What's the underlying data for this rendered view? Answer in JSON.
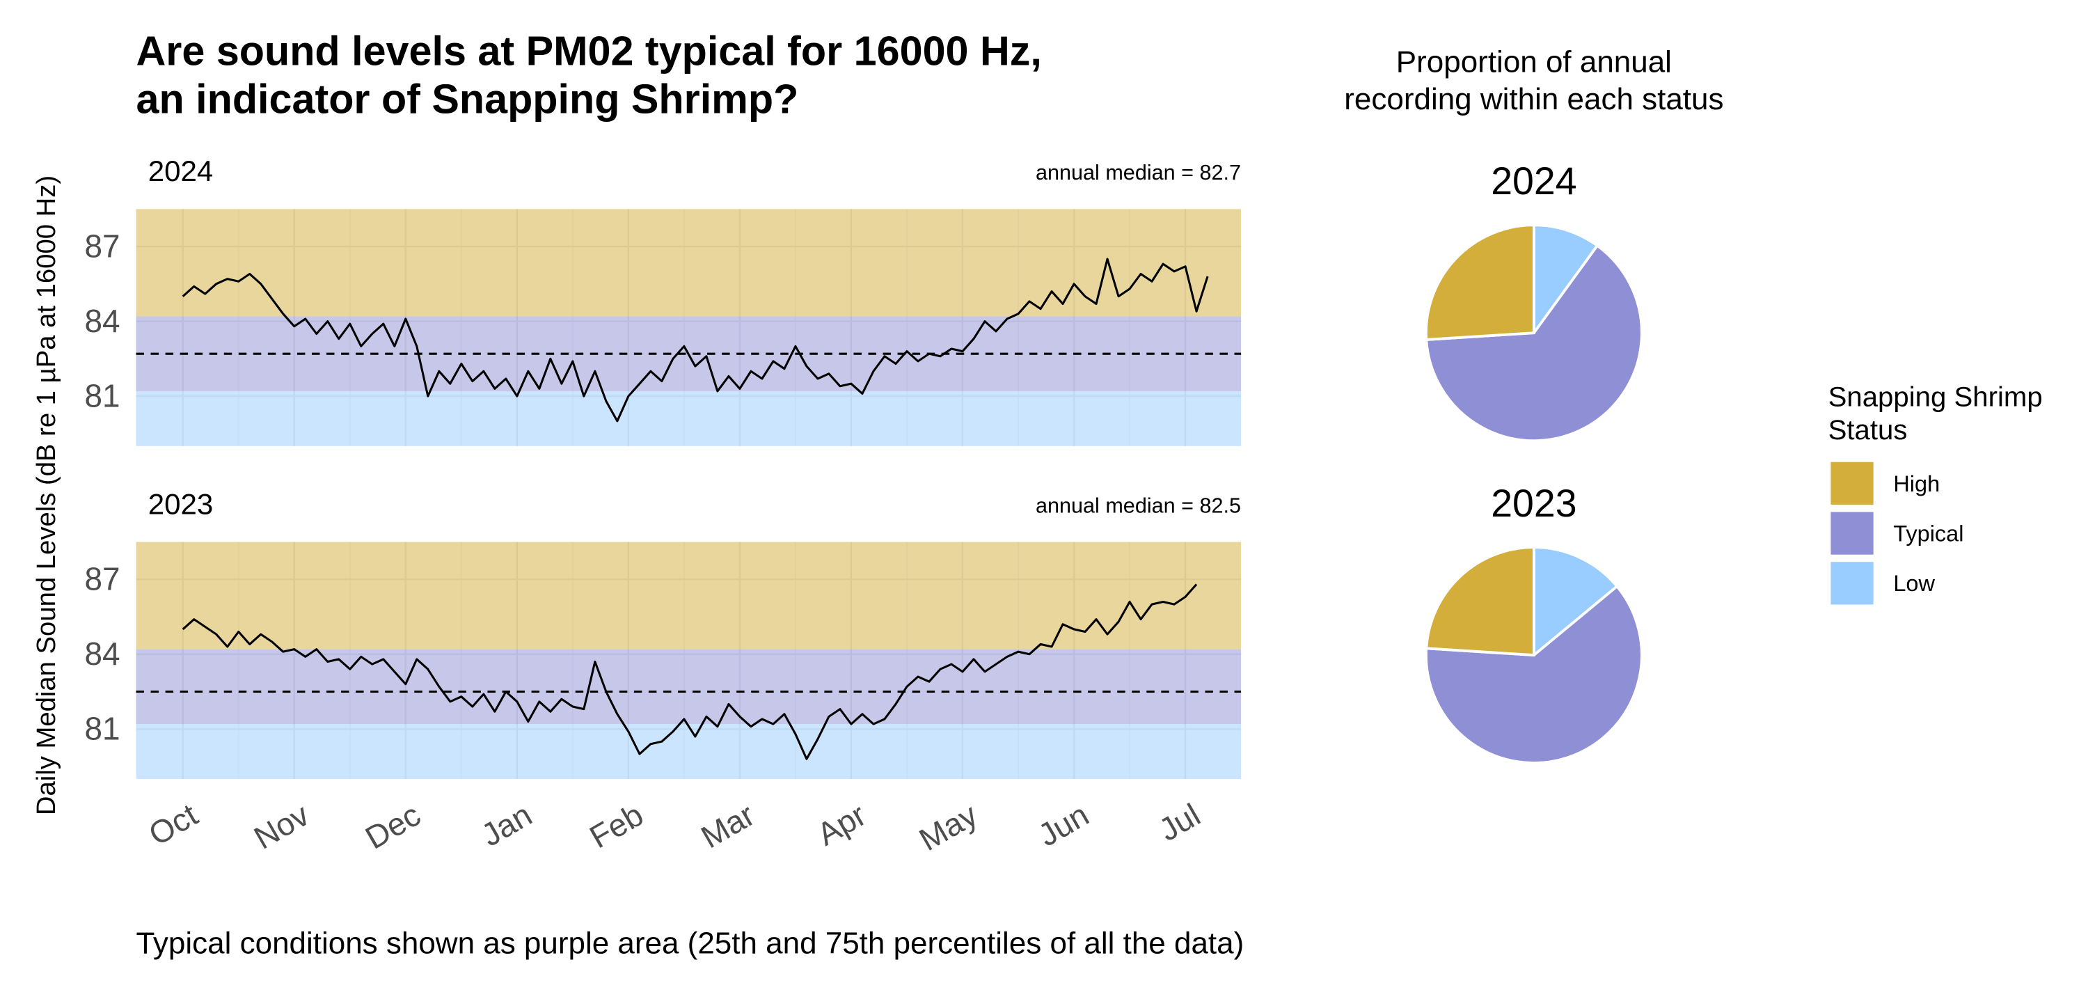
{
  "title": [
    "Are sound levels at PM02 typical for 16000 Hz,",
    "an indicator of Snapping Shrimp?"
  ],
  "y_axis_label": "Daily Median Sound Levels (dB re 1 µPa at 16000 Hz)",
  "caption": "Typical conditions shown as purple area (25th and 75th percentiles of all the data)",
  "pie_heading": [
    "Proportion of annual",
    "recording within each status"
  ],
  "legend_title": [
    "Snapping Shrimp",
    "Status"
  ],
  "chart_data": [
    {
      "type": "line",
      "title": "2024",
      "annotation": "annual median = 82.7",
      "median": 82.7,
      "typical_range": [
        81.2,
        84.2
      ],
      "xlim": [
        -0.42,
        9.5
      ],
      "ylim": [
        79,
        88.5
      ],
      "xticks": [
        0,
        1,
        2,
        3,
        4,
        5,
        6,
        7,
        8,
        9
      ],
      "yticks": [
        81,
        84,
        87
      ],
      "grid": true,
      "x": [
        0,
        0.1,
        0.2,
        0.3,
        0.4,
        0.5,
        0.6,
        0.7,
        0.8,
        0.9,
        1,
        1.1,
        1.2,
        1.3,
        1.4,
        1.5,
        1.6,
        1.7,
        1.8,
        1.9,
        2,
        2.1,
        2.2,
        2.3,
        2.4,
        2.5,
        2.6,
        2.7,
        2.8,
        2.9,
        3,
        3.1,
        3.2,
        3.3,
        3.4,
        3.5,
        3.6,
        3.7,
        3.8,
        3.9,
        4,
        4.1,
        4.2,
        4.3,
        4.4,
        4.5,
        4.6,
        4.7,
        4.8,
        4.9,
        5,
        5.1,
        5.2,
        5.3,
        5.4,
        5.5,
        5.6,
        5.7,
        5.8,
        5.9,
        6,
        6.1,
        6.2,
        6.3,
        6.4,
        6.5,
        6.6,
        6.7,
        6.8,
        6.9,
        7,
        7.1,
        7.2,
        7.3,
        7.4,
        7.5,
        7.6,
        7.7,
        7.8,
        7.9,
        8,
        8.1,
        8.2,
        8.3,
        8.4,
        8.5,
        8.6,
        8.7,
        8.8,
        8.9,
        9,
        9.1,
        9.2
      ],
      "series": [
        {
          "color": "#000000",
          "values": [
            85.0,
            85.4,
            85.1,
            85.5,
            85.7,
            85.6,
            85.9,
            85.5,
            84.9,
            84.3,
            83.8,
            84.1,
            83.5,
            84.0,
            83.3,
            83.9,
            83.0,
            83.5,
            83.9,
            83.0,
            84.1,
            83.0,
            81.0,
            82.0,
            81.5,
            82.3,
            81.6,
            82.0,
            81.3,
            81.7,
            81.0,
            82.0,
            81.3,
            82.5,
            81.5,
            82.4,
            81.0,
            82.0,
            80.8,
            80.0,
            81.0,
            81.5,
            82.0,
            81.6,
            82.5,
            83.0,
            82.2,
            82.6,
            81.2,
            81.8,
            81.3,
            82.0,
            81.7,
            82.4,
            82.1,
            83.0,
            82.2,
            81.7,
            81.9,
            81.4,
            81.5,
            81.1,
            82.0,
            82.6,
            82.3,
            82.8,
            82.4,
            82.7,
            82.6,
            82.9,
            82.8,
            83.3,
            84.0,
            83.6,
            84.1,
            84.3,
            84.8,
            84.5,
            85.2,
            84.7,
            85.5,
            85.0,
            84.7,
            86.5,
            85.0,
            85.3,
            85.9,
            85.6,
            86.3,
            86.0,
            86.2,
            84.4,
            85.8
          ]
        }
      ]
    },
    {
      "type": "line",
      "title": "2023",
      "annotation": "annual median = 82.5",
      "median": 82.5,
      "typical_range": [
        81.2,
        84.2
      ],
      "xlim": [
        -0.42,
        9.5
      ],
      "ylim": [
        79,
        88.5
      ],
      "xticks": [
        {
          "value": 0,
          "label": "Oct"
        },
        {
          "value": 1,
          "label": "Nov"
        },
        {
          "value": 2,
          "label": "Dec"
        },
        {
          "value": 3,
          "label": "Jan"
        },
        {
          "value": 4,
          "label": "Feb"
        },
        {
          "value": 5,
          "label": "Mar"
        },
        {
          "value": 6,
          "label": "Apr"
        },
        {
          "value": 7,
          "label": "May"
        },
        {
          "value": 8,
          "label": "Jun"
        },
        {
          "value": 9,
          "label": "Jul"
        }
      ],
      "yticks": [
        81,
        84,
        87
      ],
      "grid": true,
      "x": [
        0,
        0.1,
        0.2,
        0.3,
        0.4,
        0.5,
        0.6,
        0.7,
        0.8,
        0.9,
        1,
        1.1,
        1.2,
        1.3,
        1.4,
        1.5,
        1.6,
        1.7,
        1.8,
        1.9,
        2,
        2.1,
        2.2,
        2.3,
        2.4,
        2.5,
        2.6,
        2.7,
        2.8,
        2.9,
        3,
        3.1,
        3.2,
        3.3,
        3.4,
        3.5,
        3.6,
        3.7,
        3.8,
        3.9,
        4,
        4.1,
        4.2,
        4.3,
        4.4,
        4.5,
        4.6,
        4.7,
        4.8,
        4.9,
        5,
        5.1,
        5.2,
        5.3,
        5.4,
        5.5,
        5.6,
        5.7,
        5.8,
        5.9,
        6,
        6.1,
        6.2,
        6.3,
        6.4,
        6.5,
        6.6,
        6.7,
        6.8,
        6.9,
        7,
        7.1,
        7.2,
        7.3,
        7.4,
        7.5,
        7.6,
        7.7,
        7.8,
        7.9,
        8,
        8.1,
        8.2,
        8.3,
        8.4,
        8.5,
        8.6,
        8.7,
        8.8,
        8.9,
        9,
        9.1
      ],
      "series": [
        {
          "color": "#000000",
          "values": [
            85.0,
            85.4,
            85.1,
            84.8,
            84.3,
            84.9,
            84.4,
            84.8,
            84.5,
            84.1,
            84.2,
            83.9,
            84.2,
            83.7,
            83.8,
            83.4,
            83.9,
            83.6,
            83.8,
            83.3,
            82.8,
            83.8,
            83.4,
            82.7,
            82.1,
            82.3,
            81.9,
            82.4,
            81.7,
            82.5,
            82.1,
            81.3,
            82.1,
            81.7,
            82.2,
            81.9,
            81.8,
            83.7,
            82.5,
            81.6,
            80.9,
            80.0,
            80.4,
            80.5,
            80.9,
            81.4,
            80.7,
            81.5,
            81.1,
            82.0,
            81.5,
            81.1,
            81.4,
            81.2,
            81.6,
            80.8,
            79.8,
            80.6,
            81.5,
            81.8,
            81.2,
            81.6,
            81.2,
            81.4,
            82.0,
            82.7,
            83.1,
            82.9,
            83.4,
            83.6,
            83.3,
            83.8,
            83.3,
            83.6,
            83.9,
            84.1,
            84.0,
            84.4,
            84.3,
            85.2,
            85.0,
            84.9,
            85.4,
            84.8,
            85.3,
            86.1,
            85.4,
            86.0,
            86.1,
            86.0,
            86.3,
            86.8
          ]
        }
      ]
    },
    {
      "type": "pie",
      "title": "2024",
      "categories": [
        "High",
        "Typical",
        "Low"
      ],
      "values": [
        26,
        64,
        10
      ],
      "colors": [
        "#d4ae3b",
        "#8f8fd6",
        "#99ccff"
      ]
    },
    {
      "type": "pie",
      "title": "2023",
      "categories": [
        "High",
        "Typical",
        "Low"
      ],
      "values": [
        24,
        62,
        14
      ],
      "colors": [
        "#d4ae3b",
        "#8f8fd6",
        "#99ccff"
      ]
    }
  ]
}
